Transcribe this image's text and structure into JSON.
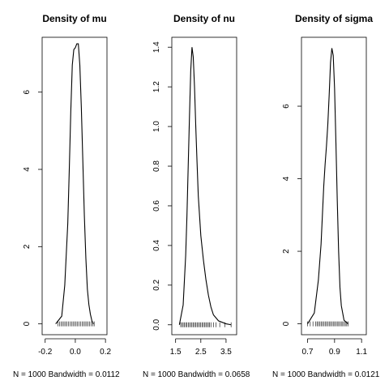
{
  "chart_data": [
    {
      "type": "line",
      "title": "Density of mu",
      "xlabel": "N = 1000   Bandwidth = 0.0112",
      "xlim": [
        -0.22,
        0.21
      ],
      "ylim": [
        -0.28,
        7.42
      ],
      "xticks": [
        -0.2,
        0.0,
        0.2
      ],
      "xtick_labels": [
        "-0.2",
        "0.0",
        "0.2"
      ],
      "yticks": [
        0,
        2,
        4,
        6
      ],
      "ytick_labels": [
        "0",
        "2",
        "4",
        "6"
      ],
      "x": [
        -0.13,
        -0.09,
        -0.07,
        -0.05,
        -0.04,
        -0.03,
        -0.02,
        -0.01,
        0.0,
        0.01,
        0.02,
        0.03,
        0.04,
        0.05,
        0.06,
        0.07,
        0.08,
        0.09,
        0.1,
        0.11,
        0.12
      ],
      "y": [
        0.0,
        0.2,
        1.0,
        2.6,
        4.0,
        5.5,
        6.7,
        7.1,
        7.15,
        7.25,
        7.25,
        6.7,
        5.6,
        4.2,
        2.8,
        1.7,
        0.9,
        0.5,
        0.25,
        0.08,
        0.0
      ],
      "rug": [
        -0.115,
        -0.105,
        -0.095,
        -0.085,
        -0.075,
        -0.065,
        -0.055,
        -0.045,
        -0.035,
        -0.025,
        -0.015,
        -0.005,
        0.005,
        0.015,
        0.025,
        0.035,
        0.045,
        0.055,
        0.065,
        0.075,
        0.085,
        0.095,
        0.105,
        0.115,
        0.125
      ]
    },
    {
      "type": "line",
      "title": "Density of nu",
      "xlabel": "N = 1000   Bandwidth = 0.0658",
      "xlim": [
        1.35,
        3.92
      ],
      "ylim": [
        -0.05,
        1.45
      ],
      "xticks": [
        1.5,
        2.5,
        3.5
      ],
      "xtick_labels": [
        "1.5",
        "2.5",
        "3.5"
      ],
      "yticks": [
        0.0,
        0.2,
        0.4,
        0.6,
        0.8,
        1.0,
        1.2,
        1.4
      ],
      "ytick_labels": [
        "0.0",
        "0.2",
        "0.4",
        "0.6",
        "0.8",
        "1.0",
        "1.2",
        "1.4"
      ],
      "x": [
        1.65,
        1.8,
        1.9,
        1.95,
        2.0,
        2.05,
        2.1,
        2.15,
        2.2,
        2.25,
        2.3,
        2.35,
        2.4,
        2.5,
        2.6,
        2.7,
        2.8,
        2.9,
        3.0,
        3.2,
        3.5,
        3.7
      ],
      "y": [
        0.0,
        0.1,
        0.35,
        0.55,
        0.8,
        1.05,
        1.28,
        1.4,
        1.35,
        1.2,
        1.0,
        0.82,
        0.65,
        0.45,
        0.33,
        0.23,
        0.15,
        0.09,
        0.05,
        0.02,
        0.005,
        0.0
      ],
      "rug": [
        1.7,
        1.75,
        1.8,
        1.85,
        1.9,
        1.95,
        2.0,
        2.05,
        2.1,
        2.15,
        2.2,
        2.25,
        2.3,
        2.35,
        2.4,
        2.45,
        2.5,
        2.55,
        2.6,
        2.65,
        2.7,
        2.75,
        2.8,
        2.85,
        2.9,
        3.0,
        3.1,
        3.25,
        3.45,
        3.7
      ]
    },
    {
      "type": "line",
      "title": "Density of sigma",
      "xlabel": "N = 1000   Bandwidth = 0.0121",
      "xlim": [
        0.655,
        1.135
      ],
      "ylim": [
        -0.3,
        7.9
      ],
      "xticks": [
        0.7,
        0.9,
        1.1
      ],
      "xtick_labels": [
        "0.7",
        "0.9",
        "1.1"
      ],
      "yticks": [
        0,
        2,
        4,
        6
      ],
      "ytick_labels": [
        "0",
        "2",
        "4",
        "6"
      ],
      "x": [
        0.7,
        0.75,
        0.78,
        0.8,
        0.81,
        0.82,
        0.83,
        0.84,
        0.85,
        0.86,
        0.87,
        0.88,
        0.89,
        0.9,
        0.91,
        0.92,
        0.93,
        0.94,
        0.95,
        0.97,
        1.0
      ],
      "y": [
        0.0,
        0.3,
        1.2,
        2.2,
        3.0,
        3.8,
        4.4,
        4.9,
        5.5,
        6.3,
        7.2,
        7.6,
        7.4,
        6.5,
        5.0,
        3.4,
        2.0,
        1.0,
        0.5,
        0.1,
        0.0
      ],
      "rug": [
        0.7,
        0.72,
        0.74,
        0.76,
        0.77,
        0.78,
        0.79,
        0.8,
        0.81,
        0.82,
        0.83,
        0.84,
        0.85,
        0.86,
        0.87,
        0.88,
        0.89,
        0.9,
        0.91,
        0.92,
        0.93,
        0.94,
        0.95,
        0.96,
        0.97,
        0.98,
        0.99,
        1.0
      ]
    }
  ]
}
